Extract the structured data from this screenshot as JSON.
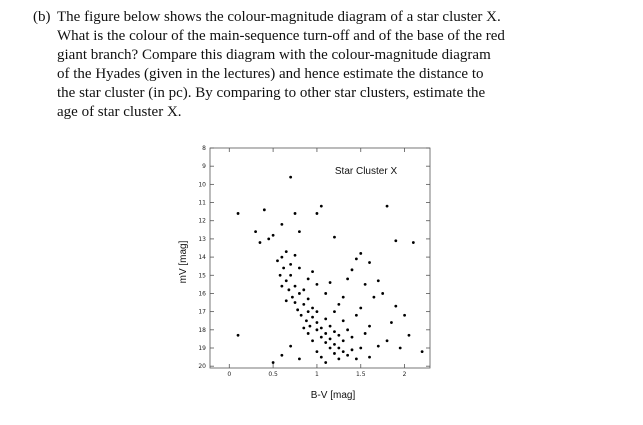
{
  "question": {
    "label": "(b)",
    "lines": [
      "The figure below shows the colour-magnitude diagram of a star cluster X.",
      "What is the colour of the main-sequence turn-off and of the base of the red",
      "giant branch? Compare this diagram with the colour-magnitude diagram",
      "of the Hyades (given in the lectures) and hence estimate the distance to",
      "the star cluster (in pc). By comparing to other star clusters, estimate the",
      "age of star cluster X."
    ]
  },
  "chart_data": {
    "type": "scatter",
    "title": "Star Cluster X",
    "xlabel": "B-V [mag]",
    "ylabel": "mV [mag]",
    "color": "#000000",
    "xlim": [
      -0.22,
      2.29
    ],
    "ylim": [
      20.1,
      8
    ],
    "xticks": [
      0,
      0.5,
      1,
      1.5,
      2
    ],
    "yticks": [
      8,
      9,
      10,
      11,
      12,
      13,
      14,
      15,
      16,
      17,
      18,
      19,
      20
    ],
    "x": [
      0.7,
      0.1,
      0.4,
      0.45,
      0.3,
      0.35,
      0.5,
      0.6,
      0.75,
      0.8,
      1.0,
      1.05,
      1.2,
      1.8,
      1.9,
      2.1,
      0.1,
      0.5,
      0.6,
      2.2,
      2.0,
      1.9,
      1.85,
      1.7,
      1.6,
      1.5,
      1.45,
      1.4,
      1.35,
      1.55,
      1.65,
      1.75,
      1.5,
      1.6,
      1.8,
      1.95,
      2.05,
      0.55,
      0.6,
      0.62,
      0.58,
      0.65,
      0.6,
      0.7,
      0.68,
      0.72,
      0.65,
      0.75,
      0.8,
      0.78,
      0.85,
      0.82,
      0.9,
      0.88,
      0.95,
      0.92,
      1.0,
      1.0,
      1.05,
      1.05,
      1.1,
      1.1,
      1.15,
      1.15,
      1.2,
      1.2,
      1.25,
      1.3,
      1.3,
      1.35,
      1.4,
      1.4,
      1.45,
      1.5,
      0.7,
      0.75,
      0.85,
      0.9,
      0.95,
      1.0,
      1.1,
      1.15,
      1.2,
      1.25,
      1.0,
      0.95,
      0.9,
      0.85,
      1.05,
      1.1,
      1.25,
      1.35,
      1.3,
      1.2,
      1.25,
      1.1,
      1.0,
      0.9,
      0.8,
      0.65,
      0.75,
      0.95,
      1.15,
      1.3,
      1.45,
      1.55,
      1.7,
      1.6,
      0.8,
      0.7
    ],
    "values": [
      9.6,
      11.6,
      11.4,
      13.0,
      12.6,
      13.2,
      12.8,
      12.2,
      11.6,
      12.6,
      11.6,
      11.2,
      12.9,
      11.2,
      13.1,
      13.2,
      18.3,
      19.8,
      19.4,
      19.2,
      17.2,
      16.7,
      17.6,
      15.3,
      14.3,
      13.8,
      14.1,
      14.7,
      15.2,
      15.5,
      16.2,
      16.0,
      16.8,
      17.8,
      18.6,
      19.0,
      18.3,
      14.2,
      14.0,
      14.6,
      15.0,
      15.3,
      15.6,
      15.0,
      15.8,
      16.2,
      16.4,
      16.5,
      16.0,
      16.9,
      16.6,
      17.2,
      17.0,
      17.5,
      17.3,
      17.8,
      17.6,
      18.0,
      17.9,
      18.4,
      18.2,
      18.7,
      18.5,
      19.0,
      18.8,
      19.3,
      19.0,
      19.2,
      18.6,
      19.4,
      19.1,
      18.4,
      19.6,
      19.0,
      14.4,
      15.6,
      15.8,
      16.3,
      16.8,
      17.0,
      17.4,
      17.8,
      18.1,
      18.3,
      19.2,
      18.6,
      18.2,
      17.9,
      19.5,
      19.8,
      19.6,
      18.0,
      17.5,
      17.0,
      16.6,
      16.0,
      15.5,
      15.2,
      14.6,
      13.7,
      13.9,
      14.8,
      15.4,
      16.2,
      17.2,
      18.2,
      18.9,
      19.5,
      19.6,
      18.9
    ]
  }
}
